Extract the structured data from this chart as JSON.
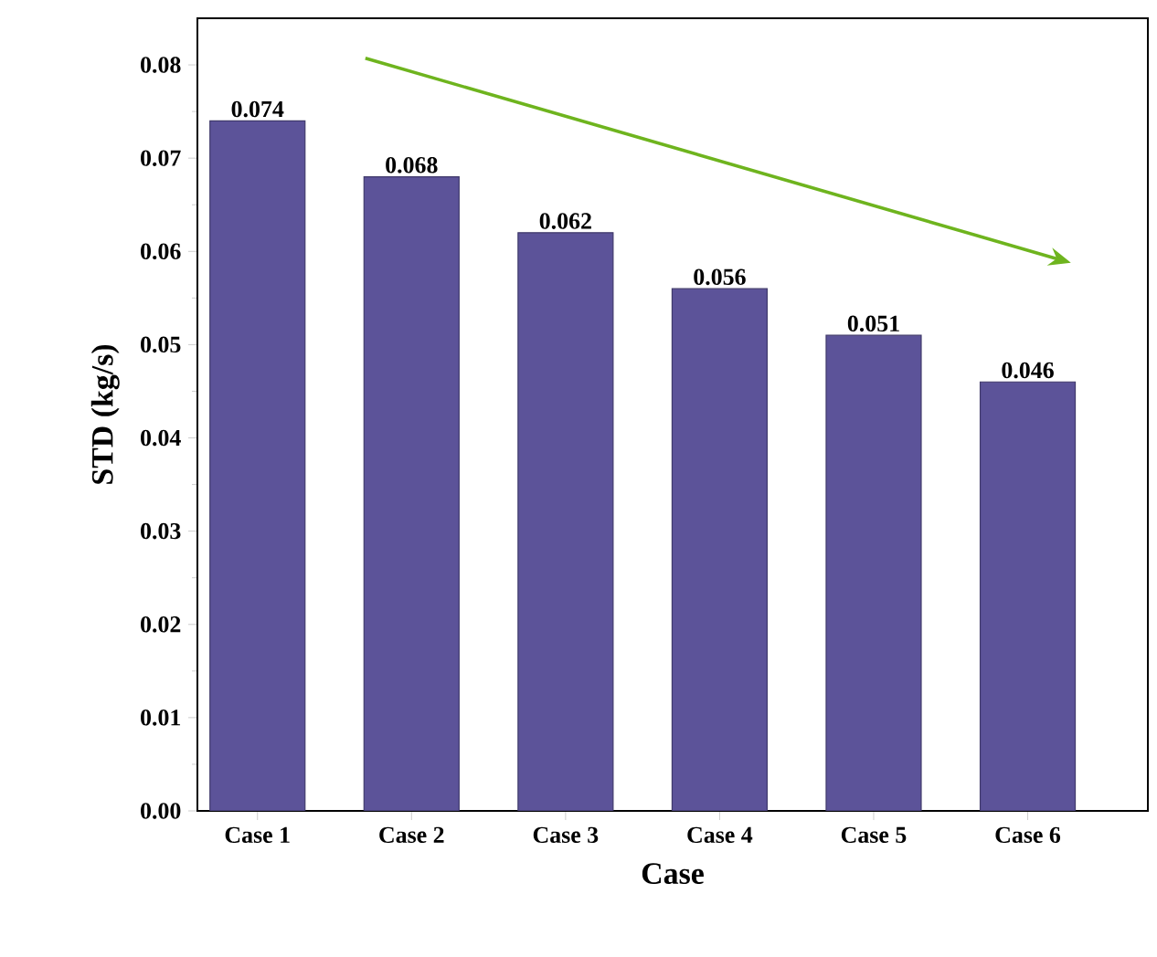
{
  "chart_data": {
    "type": "bar",
    "xlabel": "Case",
    "ylabel": "STD (kg/s)",
    "categories": [
      "Case 1",
      "Case 2",
      "Case 3",
      "Case 4",
      "Case 5",
      "Case 6"
    ],
    "values": [
      0.074,
      0.068,
      0.062,
      0.056,
      0.051,
      0.046
    ],
    "value_labels": [
      "0.074",
      "0.068",
      "0.062",
      "0.056",
      "0.051",
      "0.046"
    ],
    "color": "#5c5399",
    "ylim": [
      0,
      0.085
    ],
    "yticks": [
      {
        "value": 0,
        "label": "0.00"
      },
      0.01,
      0.02,
      0.03,
      0.04,
      0.05,
      0.06,
      0.07,
      0.08
    ],
    "grid": false
  }
}
